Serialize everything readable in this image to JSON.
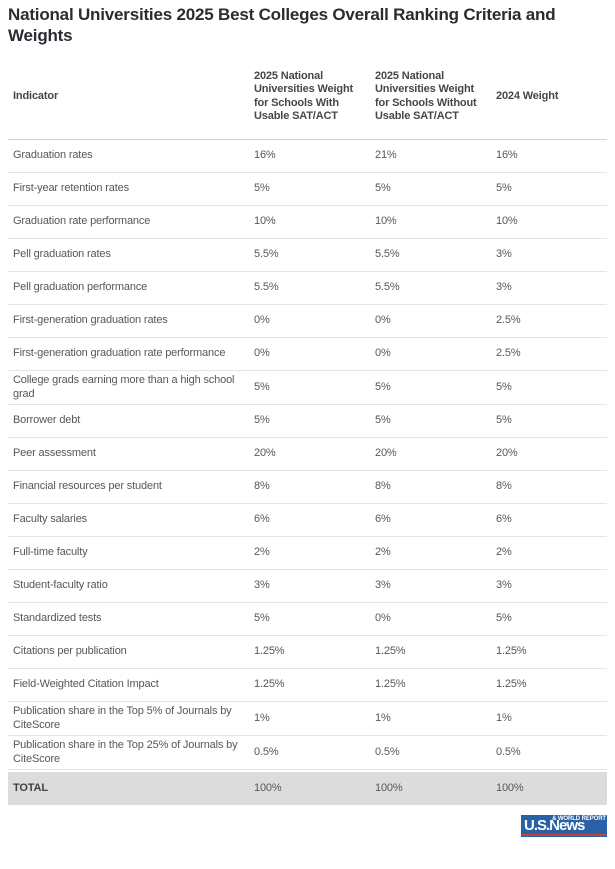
{
  "page": {
    "title": "National Universities 2025 Best Colleges Overall Ranking Criteria and Weights"
  },
  "chart_data": {
    "type": "table",
    "title": "National Universities 2025 Best Colleges Overall Ranking Criteria and Weights",
    "columns": [
      "Indicator",
      "2025 National Universities Weight for Schools With Usable SAT/ACT",
      "2025 National Universities Weight for Schools Without Usable SAT/ACT",
      "2024 Weight"
    ],
    "rows": [
      [
        "Graduation rates",
        "16%",
        "21%",
        "16%"
      ],
      [
        "First-year retention rates",
        "5%",
        "5%",
        "5%"
      ],
      [
        "Graduation rate performance",
        "10%",
        "10%",
        "10%"
      ],
      [
        "Pell graduation rates",
        "5.5%",
        "5.5%",
        "3%"
      ],
      [
        "Pell graduation performance",
        "5.5%",
        "5.5%",
        "3%"
      ],
      [
        "First-generation graduation rates",
        "0%",
        "0%",
        "2.5%"
      ],
      [
        "First-generation graduation rate performance",
        "0%",
        "0%",
        "2.5%"
      ],
      [
        "College grads earning more than a high school grad",
        "5%",
        "5%",
        "5%"
      ],
      [
        "Borrower debt",
        "5%",
        "5%",
        "5%"
      ],
      [
        "Peer assessment",
        "20%",
        "20%",
        "20%"
      ],
      [
        "Financial resources per student",
        "8%",
        "8%",
        "8%"
      ],
      [
        "Faculty salaries",
        "6%",
        "6%",
        "6%"
      ],
      [
        "Full-time faculty",
        "2%",
        "2%",
        "2%"
      ],
      [
        "Student-faculty ratio",
        "3%",
        "3%",
        "3%"
      ],
      [
        "Standardized tests",
        "5%",
        "0%",
        "5%"
      ],
      [
        "Citations per publication",
        "1.25%",
        "1.25%",
        "1.25%"
      ],
      [
        "Field-Weighted Citation Impact",
        "1.25%",
        "1.25%",
        "1.25%"
      ],
      [
        "Publication share in the Top 5% of Journals by CiteScore",
        "1%",
        "1%",
        "1%"
      ],
      [
        "Publication share in the Top 25% of Journals by CiteScore",
        "0.5%",
        "0.5%",
        "0.5%"
      ]
    ],
    "total_row": [
      "TOTAL",
      "100%",
      "100%",
      "100%"
    ]
  },
  "footer": {
    "logo": {
      "wordmark": "U.S.News",
      "tagline": "& WORLD REPORT"
    }
  },
  "colors": {
    "title_text": "#2b2b34",
    "body_text": "#55575b",
    "row_border": "#e3e4e6",
    "total_row_bg": "#dcdcdc",
    "logo_blue": "#2a60a5",
    "logo_red": "#c84136"
  }
}
